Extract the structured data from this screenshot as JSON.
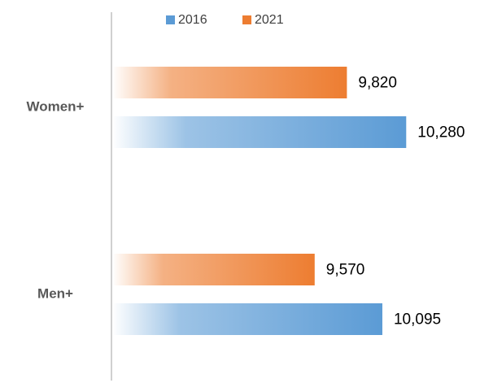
{
  "chart_data": {
    "type": "hbar",
    "categories": [
      "Women+",
      "Men+"
    ],
    "series": [
      {
        "name": "2016",
        "color": "#5b9bd5",
        "values": [
          10280,
          10095
        ],
        "value_labels": [
          "10,280",
          "10,095"
        ]
      },
      {
        "name": "2021",
        "color": "#ed7d31",
        "values": [
          9820,
          9570
        ],
        "value_labels": [
          "9,820",
          "9,570"
        ]
      }
    ],
    "xlim": [
      8000,
      10600
    ]
  }
}
